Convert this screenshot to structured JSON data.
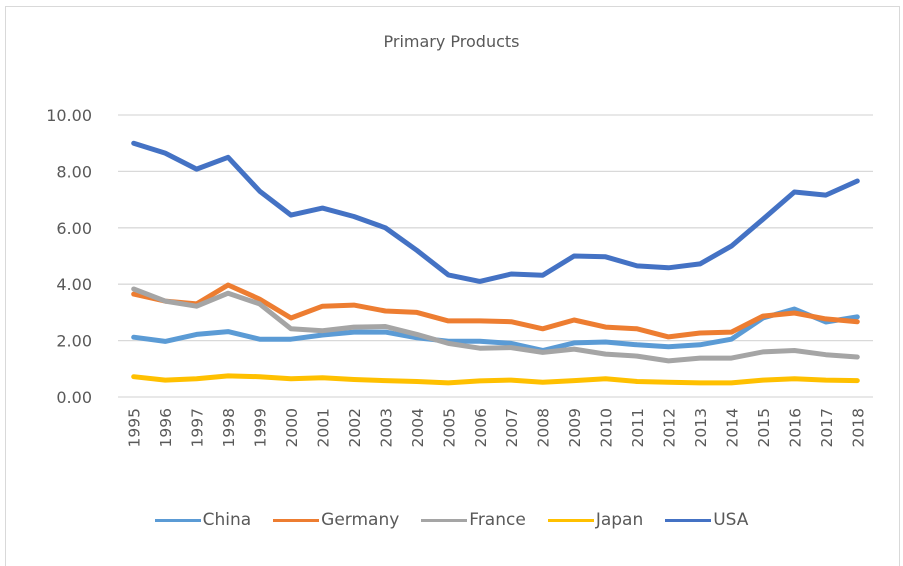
{
  "chart_data": {
    "type": "line",
    "title": "Primary Products",
    "xlabel": "",
    "ylabel": "",
    "ylim": [
      0,
      10
    ],
    "yticks": [
      "0.00",
      "2.00",
      "4.00",
      "6.00",
      "8.00",
      "10.00"
    ],
    "ytick_values": [
      0,
      2,
      4,
      6,
      8,
      10
    ],
    "grid": true,
    "legend_position": "bottom",
    "x": [
      "1995",
      "1996",
      "1997",
      "1998",
      "1999",
      "2000",
      "2001",
      "2002",
      "2003",
      "2004",
      "2005",
      "2006",
      "2007",
      "2008",
      "2009",
      "2010",
      "2011",
      "2012",
      "2013",
      "2014",
      "2015",
      "2016",
      "2017",
      "2018"
    ],
    "series": [
      {
        "name": "China",
        "color": "#5b9bd5",
        "values": [
          2.12,
          1.97,
          2.22,
          2.32,
          2.05,
          2.05,
          2.2,
          2.3,
          2.3,
          2.1,
          1.98,
          1.98,
          1.9,
          1.65,
          1.92,
          1.95,
          1.85,
          1.78,
          1.85,
          2.05,
          2.8,
          3.12,
          2.66,
          2.84
        ]
      },
      {
        "name": "Germany",
        "color": "#ed7d31",
        "values": [
          3.65,
          3.4,
          3.3,
          3.97,
          3.47,
          2.8,
          3.22,
          3.26,
          3.05,
          3.0,
          2.7,
          2.7,
          2.67,
          2.42,
          2.73,
          2.48,
          2.42,
          2.13,
          2.27,
          2.3,
          2.87,
          2.98,
          2.77,
          2.67
        ]
      },
      {
        "name": "France",
        "color": "#a5a5a5",
        "values": [
          3.83,
          3.4,
          3.22,
          3.68,
          3.3,
          2.42,
          2.35,
          2.48,
          2.5,
          2.22,
          1.9,
          1.73,
          1.75,
          1.58,
          1.7,
          1.52,
          1.45,
          1.28,
          1.38,
          1.38,
          1.6,
          1.65,
          1.5,
          1.42
        ]
      },
      {
        "name": "Japan",
        "color": "#ffc000",
        "values": [
          0.72,
          0.6,
          0.65,
          0.75,
          0.72,
          0.65,
          0.68,
          0.62,
          0.58,
          0.55,
          0.5,
          0.57,
          0.6,
          0.52,
          0.58,
          0.65,
          0.55,
          0.52,
          0.5,
          0.5,
          0.6,
          0.65,
          0.6,
          0.58
        ]
      },
      {
        "name": "USA",
        "color": "#4472c4",
        "values": [
          9.0,
          8.65,
          8.08,
          8.5,
          7.3,
          6.45,
          6.7,
          6.4,
          6.0,
          5.2,
          4.33,
          4.1,
          4.36,
          4.32,
          5.0,
          4.97,
          4.65,
          4.58,
          4.72,
          5.35,
          6.3,
          7.27,
          7.16,
          7.66
        ]
      }
    ]
  }
}
